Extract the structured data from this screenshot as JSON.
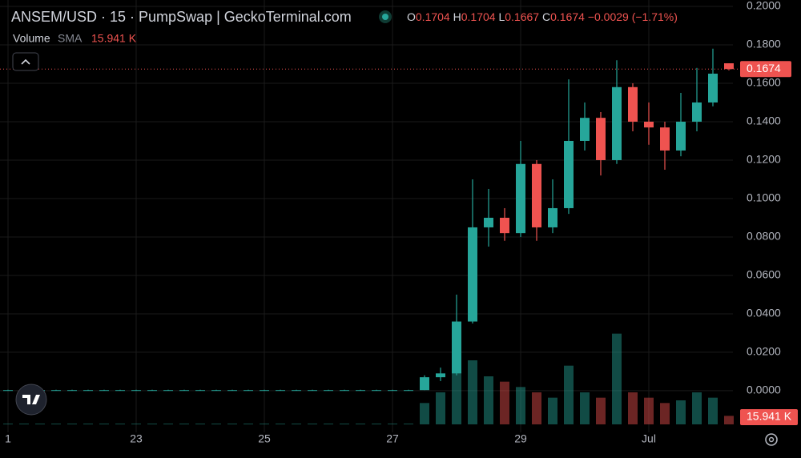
{
  "chart_data": {
    "type": "candlestick",
    "title": "ANSEM/USD · 15 · PumpSwap | GeckoTerminal.com",
    "ohlc": [
      {
        "label": "O",
        "value": 0.1704
      },
      {
        "label": "H",
        "value": 0.1704
      },
      {
        "label": "L",
        "value": 0.1667
      },
      {
        "label": "C",
        "value": 0.1674
      }
    ],
    "change": "−0.0029 (−1.71%)",
    "volume_label": "Volume",
    "sma_label": "SMA",
    "volume_value": "15.941 K",
    "categories": [
      "1",
      null,
      null,
      null,
      null,
      null,
      null,
      null,
      "23",
      null,
      null,
      null,
      null,
      null,
      null,
      null,
      "25",
      null,
      null,
      null,
      null,
      null,
      null,
      null,
      "27",
      null,
      null,
      null,
      null,
      null,
      null,
      null,
      "29",
      null,
      null,
      null,
      null,
      null,
      null,
      null,
      "Jul",
      null,
      null,
      null,
      null,
      null
    ],
    "open": [
      0.0003,
      0.0003,
      0.0003,
      0.0003,
      0.0003,
      0.0003,
      0.0003,
      0.0003,
      0.0003,
      0.0003,
      0.0003,
      0.0003,
      0.0003,
      0.0003,
      0.0003,
      0.0003,
      0.0003,
      0.0003,
      0.0003,
      0.0003,
      0.0003,
      0.0003,
      0.0003,
      0.0003,
      0.0003,
      0.0003,
      0.0003,
      0.007,
      0.009,
      0.036,
      0.085,
      0.09,
      0.082,
      0.118,
      0.085,
      0.095,
      0.13,
      0.142,
      0.12,
      0.158,
      0.14,
      0.137,
      0.125,
      0.14,
      0.15,
      0.1704
    ],
    "high": [
      0.0005,
      0.0005,
      0.0005,
      0.0005,
      0.0005,
      0.0005,
      0.0005,
      0.0005,
      0.0005,
      0.0005,
      0.0005,
      0.0005,
      0.0005,
      0.0005,
      0.0005,
      0.0005,
      0.0005,
      0.0005,
      0.0005,
      0.0005,
      0.0005,
      0.0005,
      0.0005,
      0.0005,
      0.0005,
      0.0005,
      0.008,
      0.012,
      0.05,
      0.11,
      0.105,
      0.095,
      0.13,
      0.12,
      0.11,
      0.162,
      0.15,
      0.145,
      0.172,
      0.16,
      0.15,
      0.14,
      0.155,
      0.168,
      0.178,
      0.1704
    ],
    "low": [
      0.0001,
      0.0001,
      0.0001,
      0.0001,
      0.0001,
      0.0001,
      0.0001,
      0.0001,
      0.0001,
      0.0001,
      0.0001,
      0.0001,
      0.0001,
      0.0001,
      0.0001,
      0.0001,
      0.0001,
      0.0001,
      0.0001,
      0.0001,
      0.0001,
      0.0001,
      0.0001,
      0.0001,
      0.0001,
      0.0001,
      0.0003,
      0.005,
      0.008,
      0.035,
      0.075,
      0.078,
      0.08,
      0.078,
      0.082,
      0.092,
      0.125,
      0.112,
      0.118,
      0.135,
      0.128,
      0.115,
      0.122,
      0.135,
      0.148,
      0.1667
    ],
    "close": [
      0.0003,
      0.0003,
      0.0003,
      0.0003,
      0.0003,
      0.0003,
      0.0003,
      0.0003,
      0.0003,
      0.0003,
      0.0003,
      0.0003,
      0.0003,
      0.0003,
      0.0003,
      0.0003,
      0.0003,
      0.0003,
      0.0003,
      0.0003,
      0.0003,
      0.0003,
      0.0003,
      0.0003,
      0.0003,
      0.0003,
      0.007,
      0.009,
      0.036,
      0.085,
      0.09,
      0.082,
      0.118,
      0.085,
      0.095,
      0.13,
      0.142,
      0.12,
      0.158,
      0.14,
      0.137,
      0.125,
      0.14,
      0.15,
      0.165,
      0.1674
    ],
    "volume": [
      1,
      1,
      1,
      1,
      1,
      1,
      1,
      1,
      1,
      1,
      1,
      1,
      1,
      1,
      1,
      1,
      1,
      1,
      1,
      1,
      1,
      1,
      1,
      1,
      1,
      1,
      40,
      60,
      180,
      120,
      90,
      80,
      70,
      60,
      50,
      110,
      60,
      50,
      170,
      60,
      50,
      40,
      45,
      60,
      50,
      15.941
    ],
    "up_color": "#26a69a",
    "down_color": "#ef5350",
    "ylim": [
      -0.0217,
      0.2
    ],
    "yticks": [
      {
        "value": 0,
        "label": "0.0000"
      },
      {
        "value": 0.02,
        "label": "0.0200"
      },
      {
        "value": 0.04,
        "label": "0.0400"
      },
      {
        "value": 0.06,
        "label": "0.0600"
      },
      {
        "value": 0.08,
        "label": "0.0800"
      },
      {
        "value": 0.1,
        "label": "0.1000"
      },
      {
        "value": 0.12,
        "label": "0.1200"
      },
      {
        "value": 0.14,
        "label": "0.1400"
      },
      {
        "value": 0.16,
        "label": "0.1600"
      },
      {
        "value": 0.18,
        "label": "0.1800"
      },
      {
        "value": 0.2,
        "label": "0.2000"
      }
    ],
    "grid": true
  }
}
